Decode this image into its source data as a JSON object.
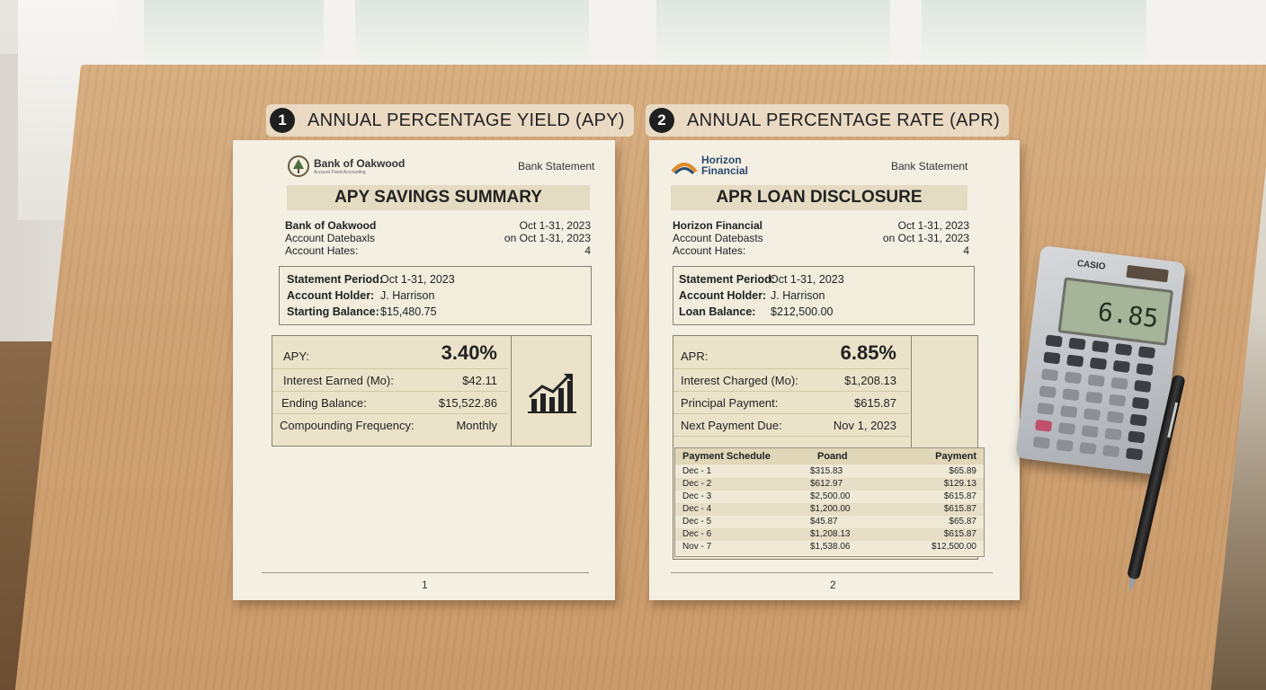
{
  "section1": {
    "number": "1",
    "title": "ANNUAL PERCENTAGE YIELD (APY)"
  },
  "section2": {
    "number": "2",
    "title": "ANNUAL PERCENTAGE RATE (APR)"
  },
  "doc1": {
    "logo_name": "Bank of Oakwood",
    "logo_tagline": "Account Fixed Accounting",
    "doc_type": "Bank Statement",
    "title": "APY SAVINGS SUMMARY",
    "info_left": [
      "Bank of Oakwood",
      "Account Datebaxls",
      "Account Hates:"
    ],
    "info_right": [
      "Oct 1-31, 2023",
      "on Oct 1-31, 2023",
      "4"
    ],
    "summary": [
      {
        "label": "Statement Period:",
        "value": "Oct 1-31, 2023"
      },
      {
        "label": "Account Holder:",
        "value": "J. Harrison"
      },
      {
        "label": "Starting Balance:",
        "value": "$15,480.75"
      }
    ],
    "metrics": [
      {
        "label": "APY:",
        "value": "3.40%"
      },
      {
        "label": "Interest Earned (Mo):",
        "value": "$42.11"
      },
      {
        "label": "Ending Balance:",
        "value": "$15,522.86"
      },
      {
        "label": "Compounding Frequency:",
        "value": "Monthly"
      }
    ],
    "page": "1"
  },
  "doc2": {
    "logo_name_1": "Horizon",
    "logo_name_2": "Financial",
    "doc_type": "Bank Statement",
    "title": "APR LOAN DISCLOSURE",
    "info_left": [
      "Horizon Financial",
      "Account Datebasts",
      "Account Hates:"
    ],
    "info_right": [
      "Oct 1-31, 2023",
      "on Oct 1-31, 2023",
      "4"
    ],
    "summary": [
      {
        "label": "Statement Period:",
        "value": "Oct 1-31, 2023"
      },
      {
        "label": "Account Holder:",
        "value": "J. Harrison"
      },
      {
        "label": "Loan Balance:",
        "value": "$212,500.00"
      }
    ],
    "metrics": [
      {
        "label": "APR:",
        "value": "6.85%"
      },
      {
        "label": "Interest Charged (Mo):",
        "value": "$1,208.13"
      },
      {
        "label": "Principal Payment:",
        "value": "$615.87"
      },
      {
        "label": "Next Payment Due:",
        "value": "Nov 1, 2023"
      }
    ],
    "schedule": {
      "headers": [
        "Payment Schedule",
        "Poand",
        "Payment"
      ],
      "rows": [
        [
          "Dec - 1",
          "$315.83",
          "$65.89"
        ],
        [
          "Dec - 2",
          "$612.97",
          "$129.13"
        ],
        [
          "Dec - 3",
          "$2,500.00",
          "$615.87"
        ],
        [
          "Dec - 4",
          "$1,200.00",
          "$615.87"
        ],
        [
          "Dec - 5",
          "$45.87",
          "$65.87"
        ],
        [
          "Dec - 6",
          "$1,208.13",
          "$615.87"
        ],
        [
          "Nov - 7",
          "$1,538.06",
          "$12,500.00"
        ]
      ]
    },
    "page": "2"
  },
  "calculator": {
    "brand": "CASIO",
    "display": "6.85"
  }
}
